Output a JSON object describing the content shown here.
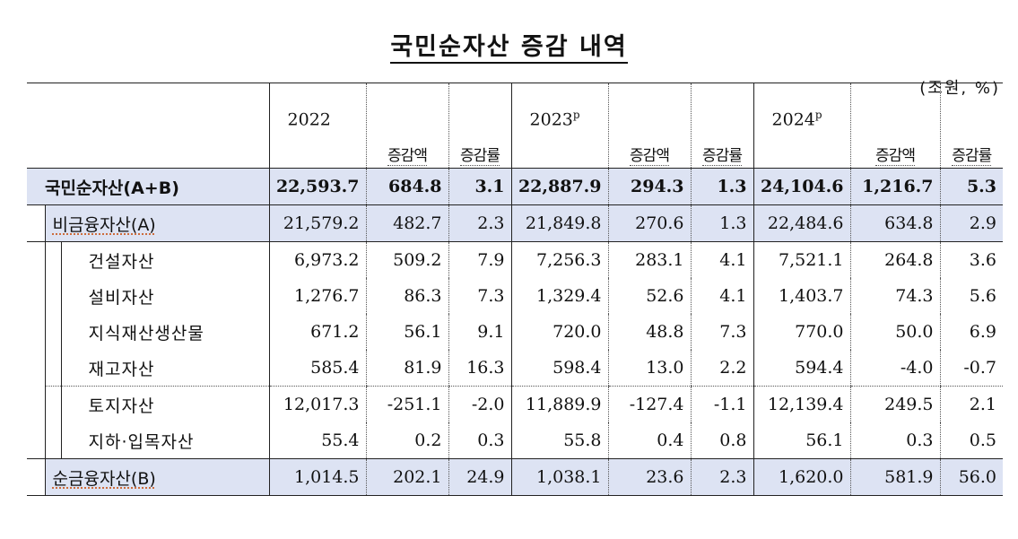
{
  "title": "국민순자산 증감 내역",
  "unit": "(조원, %)",
  "header": {
    "years": [
      {
        "label": "2022",
        "sup": ""
      },
      {
        "label": "2023",
        "sup": "p"
      },
      {
        "label": "2024",
        "sup": "p"
      }
    ],
    "change_amount": "증감액",
    "change_rate": "증감률"
  },
  "rows": [
    {
      "label": "국민순자산(A+B)",
      "values": [
        "22,593.7",
        "684.8",
        "3.1",
        "22,887.9",
        "294.3",
        "1.3",
        "24,104.6",
        "1,216.7",
        "5.3"
      ]
    },
    {
      "label": "비금융자산(A)",
      "values": [
        "21,579.2",
        "482.7",
        "2.3",
        "21,849.8",
        "270.6",
        "1.3",
        "22,484.6",
        "634.8",
        "2.9"
      ]
    },
    {
      "label": "건설자산",
      "values": [
        "6,973.2",
        "509.2",
        "7.9",
        "7,256.3",
        "283.1",
        "4.1",
        "7,521.1",
        "264.8",
        "3.6"
      ]
    },
    {
      "label": "설비자산",
      "values": [
        "1,276.7",
        "86.3",
        "7.3",
        "1,329.4",
        "52.6",
        "4.1",
        "1,403.7",
        "74.3",
        "5.6"
      ]
    },
    {
      "label": "지식재산생산물",
      "values": [
        "671.2",
        "56.1",
        "9.1",
        "720.0",
        "48.8",
        "7.3",
        "770.0",
        "50.0",
        "6.9"
      ]
    },
    {
      "label": "재고자산",
      "values": [
        "585.4",
        "81.9",
        "16.3",
        "598.4",
        "13.0",
        "2.2",
        "594.4",
        "-4.0",
        "-0.7"
      ]
    },
    {
      "label": "토지자산",
      "values": [
        "12,017.3",
        "-251.1",
        "-2.0",
        "11,889.9",
        "-127.4",
        "-1.1",
        "12,139.4",
        "249.5",
        "2.1"
      ]
    },
    {
      "label": "지하·입목자산",
      "values": [
        "55.4",
        "0.2",
        "0.3",
        "55.8",
        "0.4",
        "0.8",
        "56.1",
        "0.3",
        "0.5"
      ]
    },
    {
      "label": "순금융자산(B)",
      "values": [
        "1,014.5",
        "202.1",
        "24.9",
        "1,038.1",
        "23.6",
        "2.3",
        "1,620.0",
        "581.9",
        "56.0"
      ]
    }
  ]
}
